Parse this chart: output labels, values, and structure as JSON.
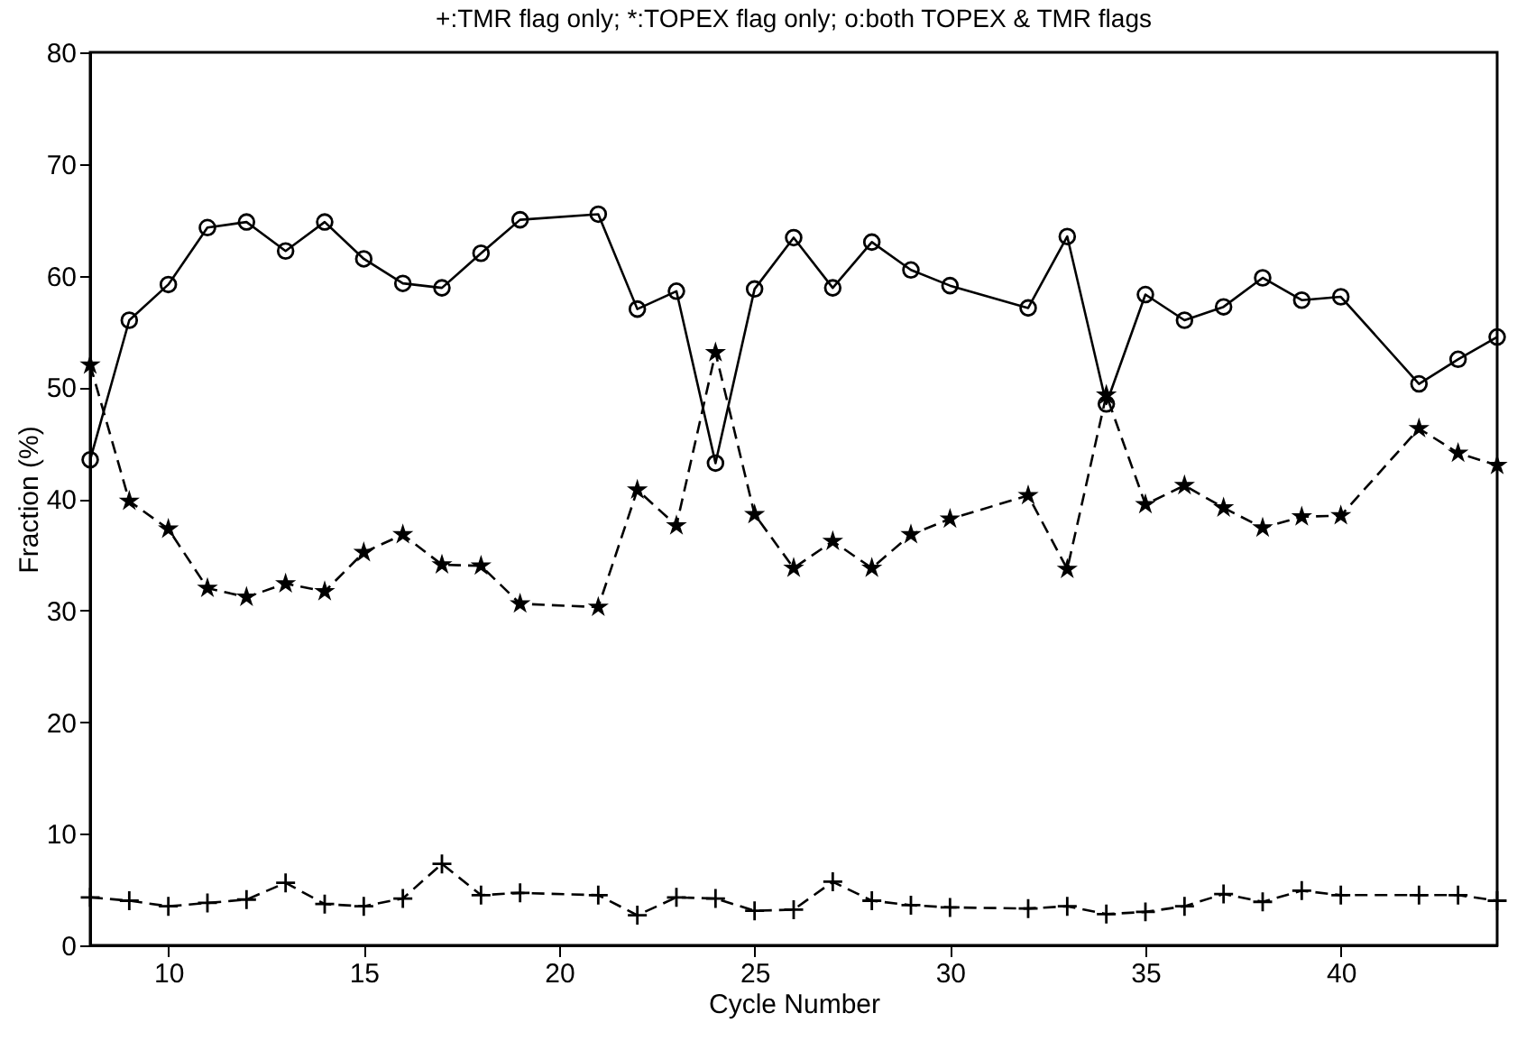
{
  "chart_data": {
    "type": "line",
    "title": "+:TMR flag only; *:TOPEX flag only; o:both TOPEX & TMR flags",
    "xlabel": "Cycle Number",
    "ylabel": "Fraction (%)",
    "x": [
      8,
      9,
      10,
      11,
      12,
      13,
      14,
      15,
      16,
      17,
      18,
      19,
      21,
      22,
      23,
      24,
      25,
      26,
      27,
      28,
      29,
      30,
      32,
      33,
      34,
      35,
      36,
      37,
      38,
      39,
      40,
      42,
      43,
      44
    ],
    "series": [
      {
        "color": "#000000",
        "marker": "circle",
        "line_style": "solid",
        "values": [
          43.5,
          56,
          59.2,
          64.3,
          64.8,
          62.2,
          64.8,
          61.5,
          59.3,
          58.9,
          62,
          65,
          65.5,
          57,
          58.6,
          43.2,
          58.8,
          63.4,
          58.9,
          63,
          60.5,
          59.1,
          57.1,
          63.5,
          48.5,
          58.3,
          56,
          57.2,
          59.8,
          57.8,
          58.1,
          50.3,
          52.5,
          54.5
        ]
      },
      {
        "color": "#000000",
        "marker": "star",
        "line_style": "dashed",
        "values": [
          52,
          39.8,
          37.3,
          32,
          31.2,
          32.4,
          31.7,
          35.2,
          36.8,
          34.1,
          34,
          30.6,
          30.3,
          40.8,
          37.6,
          53.1,
          38.6,
          33.8,
          36.2,
          33.8,
          36.8,
          38.2,
          40.3,
          33.7,
          49.3,
          39.5,
          41.2,
          39.2,
          37.4,
          38.4,
          38.5,
          46.3,
          44.1,
          43
        ]
      },
      {
        "color": "#000000",
        "marker": "cross",
        "line_style": "dashed",
        "values": [
          4.3,
          4,
          3.5,
          3.8,
          4.1,
          5.6,
          3.7,
          3.5,
          4.2,
          7.3,
          4.5,
          4.7,
          4.5,
          2.7,
          4.3,
          4.2,
          3.1,
          3.2,
          5.7,
          4,
          3.6,
          3.4,
          3.3,
          3.5,
          2.8,
          3,
          3.5,
          4.6,
          3.9,
          4.9,
          4.5,
          4.5,
          4.5,
          4
        ]
      }
    ],
    "xlim": [
      8,
      44
    ],
    "xticks": [
      10,
      15,
      20,
      25,
      30,
      35,
      40
    ],
    "ylim": [
      0,
      80
    ],
    "yticks": [
      0,
      10,
      20,
      30,
      40,
      50,
      60,
      70,
      80
    ],
    "grid": false
  }
}
